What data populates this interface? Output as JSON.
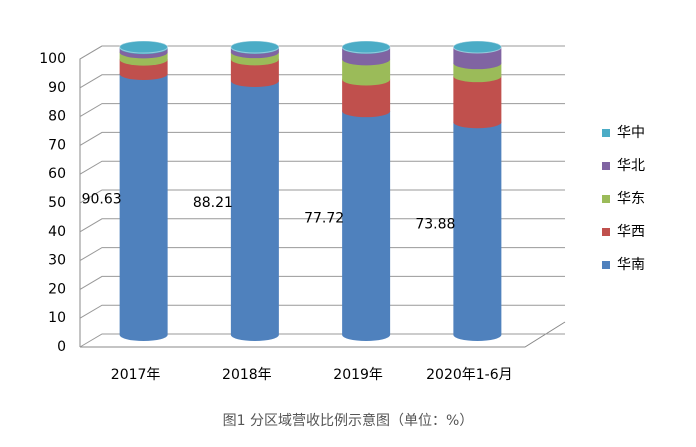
{
  "chart_data": {
    "type": "bar",
    "stacked": true,
    "title": "图1 分区域营收比例示意图（单位：%）",
    "categories": [
      "2017年",
      "2018年",
      "2019年",
      "2020年1-6月"
    ],
    "series": [
      {
        "name": "华南",
        "color": "#4f81bd",
        "values": [
          90.63,
          88.21,
          77.72,
          73.88
        ]
      },
      {
        "name": "华西",
        "color": "#c0504d",
        "values": [
          5,
          7.5,
          11,
          16
        ]
      },
      {
        "name": "华东",
        "color": "#9bbb59",
        "values": [
          2.5,
          2.5,
          7,
          4.5
        ]
      },
      {
        "name": "华北",
        "color": "#8064a2",
        "values": [
          1.5,
          1.5,
          4,
          5.5
        ]
      },
      {
        "name": "华中",
        "color": "#4bacc6",
        "values": [
          0.37,
          0.29,
          0.28,
          0.12
        ]
      }
    ],
    "ylim": [
      0,
      100
    ],
    "yticks": [
      0,
      10,
      20,
      30,
      40,
      50,
      60,
      70,
      80,
      90,
      100
    ],
    "grid": true,
    "legend": "right",
    "data_labels_series": 0
  }
}
